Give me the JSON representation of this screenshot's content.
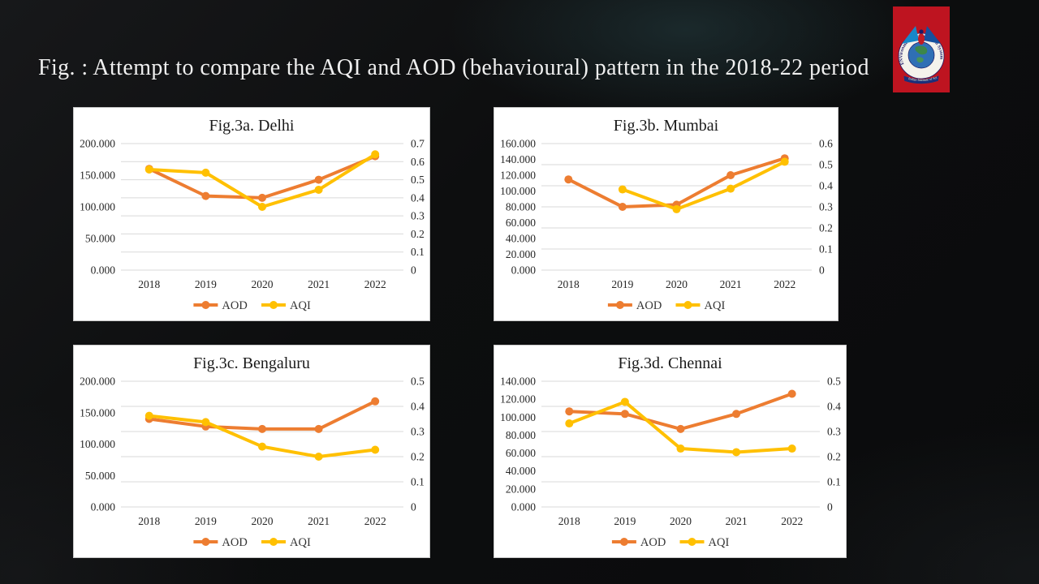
{
  "slide": {
    "title": "Fig. : Attempt to compare the AQI and AOD (behavioural) pattern in the 2018-22 period"
  },
  "logo": {
    "ring_text": "ENVironmental Information System",
    "banner_text": "Indian Institute of Science",
    "bg_color": "#be1420",
    "ring_text_color": "#1b1766",
    "globe_color": "#2f6fb5",
    "land_color": "#3e8a3e",
    "wing_color_left": "#1787c9",
    "wing_color_right": "#15509e",
    "body_color": "#c01a24",
    "banner_color": "#1b2f7a"
  },
  "colors": {
    "aod": "#ED7D31",
    "aqi": "#FFC000",
    "grid": "#d9d9d9",
    "panel_bg": "#ffffff",
    "axis_text": "#262626",
    "chart_title_text": "#1a1a1a",
    "legend_text": "#333333",
    "slide_title_text": "#efefef"
  },
  "chart_data": [
    {
      "type": "line",
      "title": "Fig.3a. Delhi",
      "x": [
        "2018",
        "2019",
        "2020",
        "2021",
        "2022"
      ],
      "left_axis": {
        "min": 0,
        "max": 200,
        "tick_values": [
          0,
          50,
          100,
          150,
          200
        ],
        "tick_labels": [
          "0.000",
          "50.000",
          "100.000",
          "150.000",
          "200.000"
        ]
      },
      "right_axis": {
        "min": 0,
        "max": 0.7,
        "tick_values": [
          0,
          0.1,
          0.2,
          0.3,
          0.4,
          0.5,
          0.6,
          0.7
        ],
        "tick_labels": [
          "0",
          "0.1",
          "0.2",
          "0.3",
          "0.4",
          "0.5",
          "0.6",
          "0.7"
        ]
      },
      "grid": true,
      "legend_position": "bottom",
      "series": [
        {
          "name": "AOD",
          "axis": "right",
          "color_key": "aod",
          "values": [
            0.56,
            0.41,
            0.4,
            0.5,
            0.63
          ]
        },
        {
          "name": "AQI",
          "axis": "left",
          "color_key": "aqi",
          "values": [
            159,
            154,
            100,
            127,
            183
          ]
        }
      ]
    },
    {
      "type": "line",
      "title": "Fig.3b. Mumbai",
      "x": [
        "2018",
        "2019",
        "2020",
        "2021",
        "2022"
      ],
      "left_axis": {
        "min": 0,
        "max": 160,
        "tick_values": [
          0,
          20,
          40,
          60,
          80,
          100,
          120,
          140,
          160
        ],
        "tick_labels": [
          "0.000",
          "20.000",
          "40.000",
          "60.000",
          "80.000",
          "100.000",
          "120.000",
          "140.000",
          "160.000"
        ]
      },
      "right_axis": {
        "min": 0,
        "max": 0.6,
        "tick_values": [
          0,
          0.1,
          0.2,
          0.3,
          0.4,
          0.5,
          0.6
        ],
        "tick_labels": [
          "0",
          "0.1",
          "0.2",
          "0.3",
          "0.4",
          "0.5",
          "0.6"
        ]
      },
      "grid": true,
      "legend_position": "bottom",
      "series": [
        {
          "name": "AOD",
          "axis": "right",
          "color_key": "aod",
          "values": [
            0.43,
            0.3,
            0.31,
            0.45,
            0.53
          ]
        },
        {
          "name": "AQI",
          "axis": "left",
          "color_key": "aqi",
          "values": [
            null,
            102,
            77,
            103,
            137
          ]
        }
      ]
    },
    {
      "type": "line",
      "title": "Fig.3c. Bengaluru",
      "x": [
        "2018",
        "2019",
        "2020",
        "2021",
        "2022"
      ],
      "left_axis": {
        "min": 0,
        "max": 200,
        "tick_values": [
          0,
          50,
          100,
          150,
          200
        ],
        "tick_labels": [
          "0.000",
          "50.000",
          "100.000",
          "150.000",
          "200.000"
        ]
      },
      "right_axis": {
        "min": 0,
        "max": 0.5,
        "tick_values": [
          0,
          0.1,
          0.2,
          0.3,
          0.4,
          0.5
        ],
        "tick_labels": [
          "0",
          "0.1",
          "0.2",
          "0.3",
          "0.4",
          "0.5"
        ]
      },
      "grid": true,
      "legend_position": "bottom",
      "series": [
        {
          "name": "AOD",
          "axis": "right",
          "color_key": "aod",
          "values": [
            0.35,
            0.32,
            0.31,
            0.31,
            0.42
          ]
        },
        {
          "name": "AQI",
          "axis": "left",
          "color_key": "aqi",
          "values": [
            145,
            135,
            96,
            80,
            91
          ]
        }
      ]
    },
    {
      "type": "line",
      "title": "Fig.3d. Chennai",
      "x": [
        "2018",
        "2019",
        "2020",
        "2021",
        "2022"
      ],
      "left_axis": {
        "min": 0,
        "max": 140,
        "tick_values": [
          0,
          20,
          40,
          60,
          80,
          100,
          120,
          140
        ],
        "tick_labels": [
          "0.000",
          "20.000",
          "40.000",
          "60.000",
          "80.000",
          "100.000",
          "120.000",
          "140.000"
        ]
      },
      "right_axis": {
        "min": 0,
        "max": 0.5,
        "tick_values": [
          0,
          0.1,
          0.2,
          0.3,
          0.4,
          0.5
        ],
        "tick_labels": [
          "0",
          "0.1",
          "0.2",
          "0.3",
          "0.4",
          "0.5"
        ]
      },
      "grid": true,
      "legend_position": "bottom",
      "series": [
        {
          "name": "AOD",
          "axis": "right",
          "color_key": "aod",
          "values": [
            0.38,
            0.37,
            0.31,
            0.37,
            0.45
          ]
        },
        {
          "name": "AQI",
          "axis": "left",
          "color_key": "aqi",
          "values": [
            93,
            117,
            65,
            61,
            65
          ]
        }
      ]
    }
  ]
}
